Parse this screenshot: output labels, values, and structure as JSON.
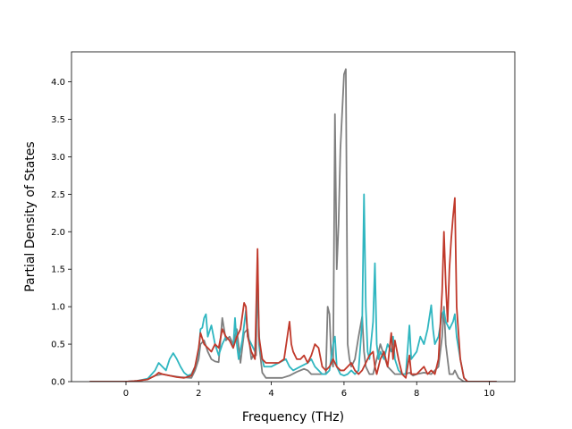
{
  "chart_data": {
    "type": "line",
    "title": "",
    "xlabel": "Frequency (THz)",
    "ylabel": "Partial Density of States",
    "xlim": [
      -1.5,
      10.7
    ],
    "ylim": [
      0.0,
      4.4
    ],
    "xticks": [
      0,
      2,
      4,
      6,
      8,
      10
    ],
    "yticks": [
      0.0,
      0.5,
      1.0,
      1.5,
      2.0,
      2.5,
      3.0,
      3.5,
      4.0
    ],
    "xtick_labels": [
      "0",
      "2",
      "4",
      "6",
      "8",
      "10"
    ],
    "ytick_labels": [
      "0.0",
      "0.5",
      "1.0",
      "1.5",
      "2.0",
      "2.5",
      "3.0",
      "3.5",
      "4.0"
    ],
    "grid": false,
    "legend": null,
    "series": [
      {
        "color": "#7f7f7f",
        "points": [
          [
            -1.0,
            0.0
          ],
          [
            0.0,
            0.0
          ],
          [
            0.3,
            0.01
          ],
          [
            0.6,
            0.03
          ],
          [
            0.8,
            0.08
          ],
          [
            1.0,
            0.1
          ],
          [
            1.2,
            0.08
          ],
          [
            1.5,
            0.06
          ],
          [
            1.8,
            0.05
          ],
          [
            1.9,
            0.15
          ],
          [
            2.0,
            0.3
          ],
          [
            2.05,
            0.5
          ],
          [
            2.15,
            0.55
          ],
          [
            2.25,
            0.4
          ],
          [
            2.35,
            0.3
          ],
          [
            2.45,
            0.27
          ],
          [
            2.55,
            0.26
          ],
          [
            2.65,
            0.85
          ],
          [
            2.75,
            0.55
          ],
          [
            2.85,
            0.6
          ],
          [
            2.95,
            0.5
          ],
          [
            3.05,
            0.7
          ],
          [
            3.15,
            0.25
          ],
          [
            3.25,
            0.65
          ],
          [
            3.35,
            0.7
          ],
          [
            3.45,
            0.3
          ],
          [
            3.5,
            0.35
          ],
          [
            3.58,
            0.35
          ],
          [
            3.62,
            1.65
          ],
          [
            3.66,
            0.5
          ],
          [
            3.75,
            0.12
          ],
          [
            3.85,
            0.05
          ],
          [
            4.0,
            0.05
          ],
          [
            4.3,
            0.05
          ],
          [
            4.5,
            0.08
          ],
          [
            4.7,
            0.13
          ],
          [
            4.9,
            0.17
          ],
          [
            5.0,
            0.15
          ],
          [
            5.1,
            0.1
          ],
          [
            5.3,
            0.1
          ],
          [
            5.5,
            0.1
          ],
          [
            5.55,
            1.0
          ],
          [
            5.6,
            0.9
          ],
          [
            5.65,
            0.3
          ],
          [
            5.7,
            0.2
          ],
          [
            5.75,
            3.57
          ],
          [
            5.8,
            1.5
          ],
          [
            5.85,
            2.1
          ],
          [
            5.9,
            3.1
          ],
          [
            5.95,
            3.6
          ],
          [
            6.0,
            4.1
          ],
          [
            6.05,
            4.17
          ],
          [
            6.1,
            0.5
          ],
          [
            6.15,
            0.3
          ],
          [
            6.2,
            0.2
          ],
          [
            6.3,
            0.3
          ],
          [
            6.4,
            0.6
          ],
          [
            6.5,
            0.87
          ],
          [
            6.55,
            0.4
          ],
          [
            6.6,
            0.2
          ],
          [
            6.7,
            0.1
          ],
          [
            6.8,
            0.1
          ],
          [
            6.9,
            0.3
          ],
          [
            7.0,
            0.5
          ],
          [
            7.1,
            0.35
          ],
          [
            7.2,
            0.2
          ],
          [
            7.3,
            0.15
          ],
          [
            7.4,
            0.1
          ],
          [
            7.5,
            0.1
          ],
          [
            7.6,
            0.1
          ],
          [
            7.7,
            0.1
          ],
          [
            7.8,
            0.12
          ],
          [
            7.9,
            0.08
          ],
          [
            8.0,
            0.1
          ],
          [
            8.2,
            0.12
          ],
          [
            8.4,
            0.1
          ],
          [
            8.6,
            0.2
          ],
          [
            8.7,
            0.6
          ],
          [
            8.75,
            1.0
          ],
          [
            8.8,
            0.5
          ],
          [
            8.9,
            0.1
          ],
          [
            9.0,
            0.1
          ],
          [
            9.05,
            0.15
          ],
          [
            9.15,
            0.05
          ],
          [
            9.3,
            0.0
          ],
          [
            10.2,
            0.0
          ]
        ]
      },
      {
        "color": "#2fb6c0",
        "points": [
          [
            -1.0,
            0.0
          ],
          [
            0.0,
            0.0
          ],
          [
            0.3,
            0.01
          ],
          [
            0.6,
            0.04
          ],
          [
            0.8,
            0.15
          ],
          [
            0.9,
            0.25
          ],
          [
            1.0,
            0.2
          ],
          [
            1.1,
            0.15
          ],
          [
            1.2,
            0.3
          ],
          [
            1.3,
            0.38
          ],
          [
            1.4,
            0.3
          ],
          [
            1.5,
            0.2
          ],
          [
            1.6,
            0.12
          ],
          [
            1.7,
            0.08
          ],
          [
            1.8,
            0.1
          ],
          [
            1.9,
            0.2
          ],
          [
            2.0,
            0.4
          ],
          [
            2.05,
            0.7
          ],
          [
            2.1,
            0.72
          ],
          [
            2.15,
            0.85
          ],
          [
            2.2,
            0.9
          ],
          [
            2.25,
            0.6
          ],
          [
            2.35,
            0.75
          ],
          [
            2.45,
            0.5
          ],
          [
            2.55,
            0.35
          ],
          [
            2.65,
            0.5
          ],
          [
            2.75,
            0.6
          ],
          [
            2.85,
            0.55
          ],
          [
            2.95,
            0.45
          ],
          [
            3.0,
            0.85
          ],
          [
            3.05,
            0.5
          ],
          [
            3.1,
            0.3
          ],
          [
            3.2,
            0.55
          ],
          [
            3.3,
            0.95
          ],
          [
            3.35,
            0.6
          ],
          [
            3.45,
            0.5
          ],
          [
            3.55,
            0.4
          ],
          [
            3.62,
            1.2
          ],
          [
            3.68,
            0.45
          ],
          [
            3.8,
            0.2
          ],
          [
            4.0,
            0.2
          ],
          [
            4.2,
            0.25
          ],
          [
            4.4,
            0.3
          ],
          [
            4.5,
            0.2
          ],
          [
            4.6,
            0.15
          ],
          [
            4.8,
            0.2
          ],
          [
            5.0,
            0.25
          ],
          [
            5.1,
            0.3
          ],
          [
            5.2,
            0.2
          ],
          [
            5.3,
            0.15
          ],
          [
            5.4,
            0.1
          ],
          [
            5.5,
            0.1
          ],
          [
            5.6,
            0.15
          ],
          [
            5.7,
            0.5
          ],
          [
            5.75,
            0.6
          ],
          [
            5.8,
            0.2
          ],
          [
            5.9,
            0.1
          ],
          [
            6.0,
            0.08
          ],
          [
            6.1,
            0.1
          ],
          [
            6.2,
            0.15
          ],
          [
            6.3,
            0.1
          ],
          [
            6.4,
            0.15
          ],
          [
            6.5,
            0.8
          ],
          [
            6.55,
            2.5
          ],
          [
            6.6,
            1.0
          ],
          [
            6.65,
            0.4
          ],
          [
            6.7,
            0.3
          ],
          [
            6.8,
            0.8
          ],
          [
            6.85,
            1.58
          ],
          [
            6.9,
            0.5
          ],
          [
            6.95,
            0.3
          ],
          [
            7.0,
            0.4
          ],
          [
            7.1,
            0.3
          ],
          [
            7.2,
            0.5
          ],
          [
            7.3,
            0.4
          ],
          [
            7.35,
            0.6
          ],
          [
            7.4,
            0.3
          ],
          [
            7.5,
            0.15
          ],
          [
            7.6,
            0.1
          ],
          [
            7.7,
            0.1
          ],
          [
            7.8,
            0.75
          ],
          [
            7.85,
            0.3
          ],
          [
            8.0,
            0.4
          ],
          [
            8.1,
            0.6
          ],
          [
            8.2,
            0.5
          ],
          [
            8.3,
            0.7
          ],
          [
            8.4,
            1.02
          ],
          [
            8.45,
            0.7
          ],
          [
            8.5,
            0.5
          ],
          [
            8.6,
            0.6
          ],
          [
            8.7,
            0.9
          ],
          [
            8.75,
            0.95
          ],
          [
            8.8,
            0.8
          ],
          [
            8.9,
            0.7
          ],
          [
            9.0,
            0.8
          ],
          [
            9.05,
            0.9
          ],
          [
            9.1,
            0.6
          ],
          [
            9.2,
            0.3
          ],
          [
            9.3,
            0.05
          ],
          [
            9.4,
            0.0
          ],
          [
            10.2,
            0.0
          ]
        ]
      },
      {
        "color": "#c0392b",
        "points": [
          [
            -1.0,
            0.0
          ],
          [
            0.0,
            0.0
          ],
          [
            0.3,
            0.01
          ],
          [
            0.6,
            0.03
          ],
          [
            0.8,
            0.08
          ],
          [
            0.9,
            0.12
          ],
          [
            1.0,
            0.1
          ],
          [
            1.2,
            0.08
          ],
          [
            1.4,
            0.06
          ],
          [
            1.6,
            0.05
          ],
          [
            1.8,
            0.08
          ],
          [
            1.9,
            0.2
          ],
          [
            2.0,
            0.45
          ],
          [
            2.05,
            0.65
          ],
          [
            2.15,
            0.5
          ],
          [
            2.25,
            0.45
          ],
          [
            2.35,
            0.4
          ],
          [
            2.45,
            0.5
          ],
          [
            2.55,
            0.45
          ],
          [
            2.65,
            0.7
          ],
          [
            2.75,
            0.6
          ],
          [
            2.85,
            0.55
          ],
          [
            2.95,
            0.45
          ],
          [
            3.05,
            0.6
          ],
          [
            3.15,
            0.7
          ],
          [
            3.25,
            1.05
          ],
          [
            3.3,
            1.0
          ],
          [
            3.35,
            0.6
          ],
          [
            3.45,
            0.4
          ],
          [
            3.55,
            0.3
          ],
          [
            3.62,
            1.77
          ],
          [
            3.66,
            0.6
          ],
          [
            3.75,
            0.3
          ],
          [
            3.85,
            0.25
          ],
          [
            4.0,
            0.25
          ],
          [
            4.2,
            0.25
          ],
          [
            4.35,
            0.3
          ],
          [
            4.5,
            0.8
          ],
          [
            4.55,
            0.5
          ],
          [
            4.6,
            0.4
          ],
          [
            4.7,
            0.3
          ],
          [
            4.8,
            0.3
          ],
          [
            4.9,
            0.35
          ],
          [
            5.0,
            0.25
          ],
          [
            5.1,
            0.35
          ],
          [
            5.2,
            0.5
          ],
          [
            5.3,
            0.45
          ],
          [
            5.4,
            0.2
          ],
          [
            5.5,
            0.15
          ],
          [
            5.6,
            0.2
          ],
          [
            5.7,
            0.3
          ],
          [
            5.8,
            0.2
          ],
          [
            5.9,
            0.15
          ],
          [
            6.0,
            0.15
          ],
          [
            6.1,
            0.2
          ],
          [
            6.2,
            0.25
          ],
          [
            6.3,
            0.15
          ],
          [
            6.4,
            0.1
          ],
          [
            6.5,
            0.15
          ],
          [
            6.6,
            0.25
          ],
          [
            6.7,
            0.35
          ],
          [
            6.8,
            0.4
          ],
          [
            6.85,
            0.2
          ],
          [
            6.9,
            0.1
          ],
          [
            7.0,
            0.3
          ],
          [
            7.1,
            0.4
          ],
          [
            7.2,
            0.2
          ],
          [
            7.3,
            0.65
          ],
          [
            7.35,
            0.3
          ],
          [
            7.4,
            0.55
          ],
          [
            7.5,
            0.3
          ],
          [
            7.6,
            0.1
          ],
          [
            7.7,
            0.05
          ],
          [
            7.8,
            0.35
          ],
          [
            7.85,
            0.1
          ],
          [
            8.0,
            0.1
          ],
          [
            8.1,
            0.15
          ],
          [
            8.2,
            0.2
          ],
          [
            8.3,
            0.1
          ],
          [
            8.4,
            0.15
          ],
          [
            8.5,
            0.1
          ],
          [
            8.6,
            0.3
          ],
          [
            8.7,
            1.2
          ],
          [
            8.75,
            2.0
          ],
          [
            8.8,
            1.3
          ],
          [
            8.85,
            0.8
          ],
          [
            8.9,
            1.5
          ],
          [
            8.95,
            1.9
          ],
          [
            9.0,
            2.2
          ],
          [
            9.05,
            2.45
          ],
          [
            9.1,
            1.0
          ],
          [
            9.2,
            0.3
          ],
          [
            9.3,
            0.05
          ],
          [
            9.4,
            0.0
          ],
          [
            10.2,
            0.0
          ]
        ]
      }
    ]
  }
}
